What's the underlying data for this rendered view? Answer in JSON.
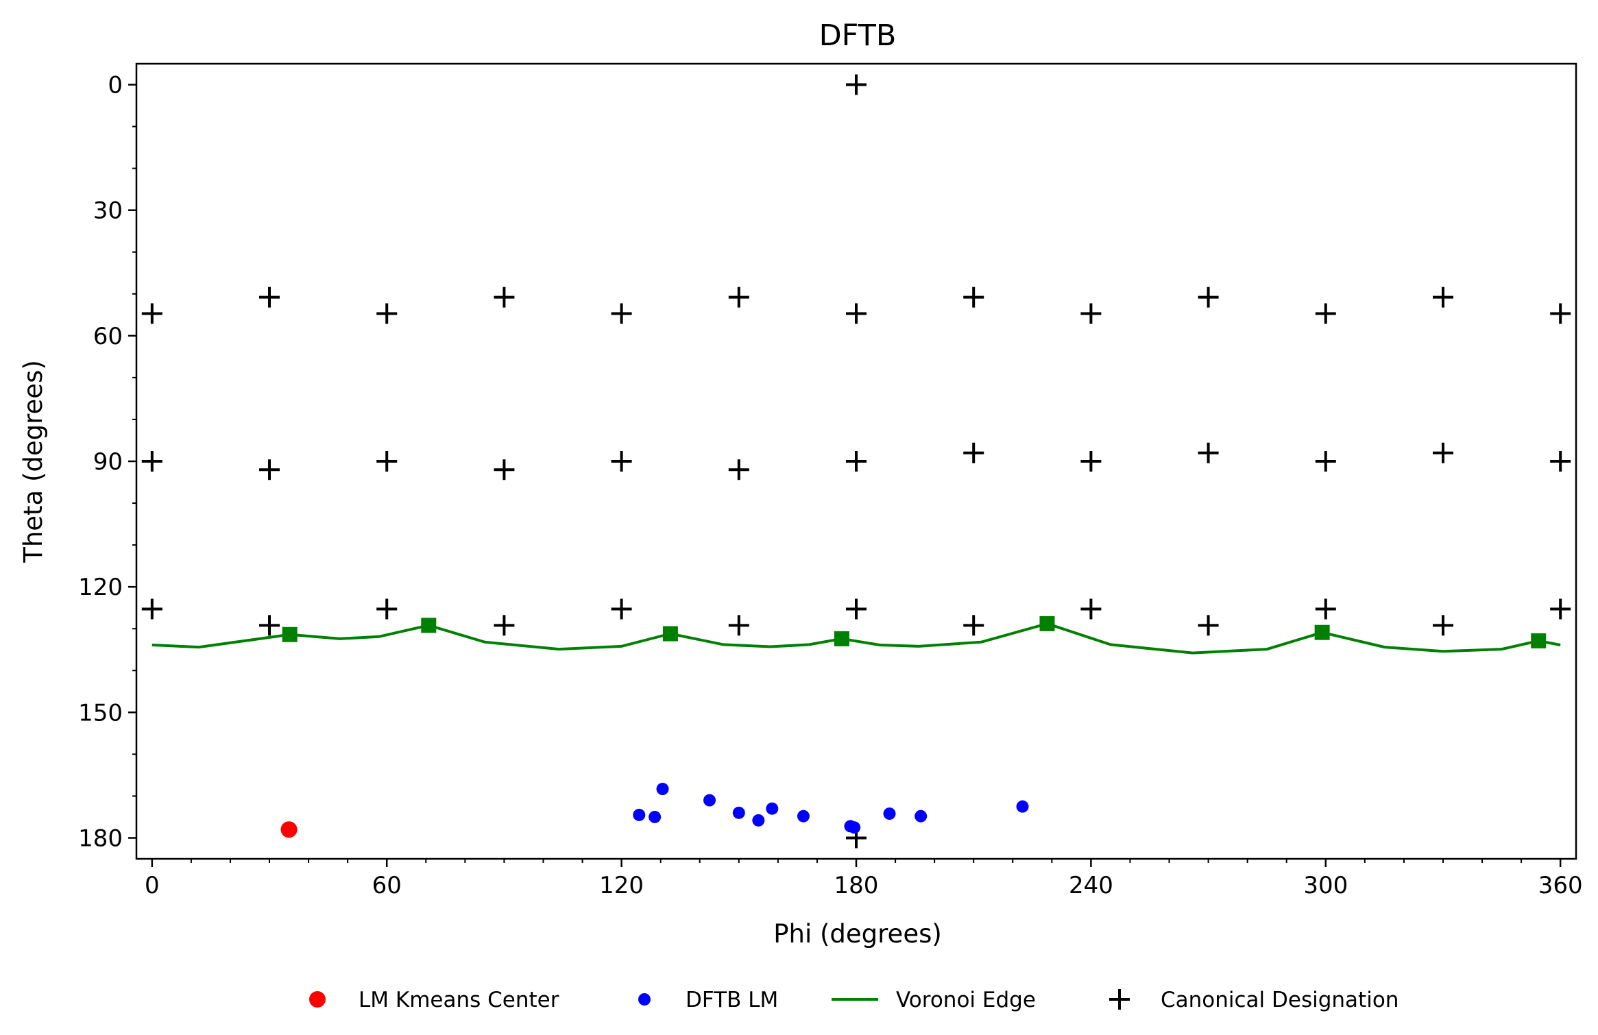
{
  "chart_data": {
    "type": "scatter",
    "title": "DFTB",
    "xlabel": "Phi (degrees)",
    "ylabel": "Theta (degrees)",
    "xlim": [
      -4,
      364
    ],
    "ylim": [
      185,
      -5
    ],
    "y_inverted": true,
    "xticks": [
      0,
      60,
      120,
      180,
      240,
      300,
      360
    ],
    "yticks": [
      0,
      30,
      60,
      90,
      120,
      150,
      180
    ],
    "grid": false,
    "legend_position": "bottom-center",
    "colors": {
      "kmeans": "#ff0000",
      "dftb": "#0000ff",
      "voronoi": "#008000",
      "canonical": "#000000"
    },
    "series": [
      {
        "name": "LM Kmeans Center",
        "marker": "circle",
        "points": [
          [
            35,
            178
          ]
        ]
      },
      {
        "name": "DFTB LM",
        "marker": "circle",
        "points": [
          [
            124.5,
            174.5
          ],
          [
            128.5,
            175
          ],
          [
            130.5,
            168.3
          ],
          [
            142.5,
            171
          ],
          [
            150,
            174
          ],
          [
            155,
            175.8
          ],
          [
            158.5,
            173
          ],
          [
            166.5,
            174.8
          ],
          [
            178.5,
            177.2
          ],
          [
            179.5,
            177.5
          ],
          [
            188.5,
            174.2
          ],
          [
            196.5,
            174.8
          ],
          [
            222.5,
            172.5
          ]
        ]
      },
      {
        "name": "Voronoi Edge",
        "marker": "line",
        "vertices": [
          [
            35.2,
            131.4
          ],
          [
            70.7,
            129.2
          ],
          [
            132.5,
            131.2
          ],
          [
            176.3,
            132.4
          ],
          [
            228.8,
            128.8
          ],
          [
            299.1,
            130.9
          ],
          [
            354.4,
            132.9
          ]
        ],
        "curve": [
          [
            0,
            133.9
          ],
          [
            12,
            134.4
          ],
          [
            35.2,
            131.4
          ],
          [
            48,
            132.4
          ],
          [
            58,
            131.9
          ],
          [
            70.7,
            129.2
          ],
          [
            85,
            133.2
          ],
          [
            104,
            134.9
          ],
          [
            120,
            134.2
          ],
          [
            132.5,
            131.2
          ],
          [
            146,
            133.8
          ],
          [
            158,
            134.3
          ],
          [
            168,
            133.8
          ],
          [
            176.3,
            132.4
          ],
          [
            186,
            133.9
          ],
          [
            196,
            134.2
          ],
          [
            212,
            133.2
          ],
          [
            228.8,
            128.8
          ],
          [
            245,
            133.8
          ],
          [
            266,
            135.8
          ],
          [
            285,
            134.9
          ],
          [
            299.1,
            130.9
          ],
          [
            315,
            134.4
          ],
          [
            330,
            135.4
          ],
          [
            345,
            134.9
          ],
          [
            354.4,
            132.9
          ],
          [
            360,
            133.9
          ]
        ]
      },
      {
        "name": "Canonical Designation",
        "marker": "plus",
        "points": [
          [
            180,
            0
          ],
          [
            0,
            54.7
          ],
          [
            30,
            50.8
          ],
          [
            60,
            54.7
          ],
          [
            90,
            50.8
          ],
          [
            120,
            54.7
          ],
          [
            150,
            50.8
          ],
          [
            180,
            54.7
          ],
          [
            210,
            50.8
          ],
          [
            240,
            54.7
          ],
          [
            270,
            50.8
          ],
          [
            300,
            54.7
          ],
          [
            330,
            50.8
          ],
          [
            360,
            54.7
          ],
          [
            0,
            90
          ],
          [
            30,
            92
          ],
          [
            60,
            90
          ],
          [
            90,
            92
          ],
          [
            120,
            90
          ],
          [
            150,
            92
          ],
          [
            180,
            90
          ],
          [
            210,
            88
          ],
          [
            240,
            90
          ],
          [
            270,
            88
          ],
          [
            300,
            90
          ],
          [
            330,
            88
          ],
          [
            360,
            90
          ],
          [
            0,
            125.3
          ],
          [
            30,
            129.2
          ],
          [
            60,
            125.3
          ],
          [
            90,
            129.2
          ],
          [
            120,
            125.3
          ],
          [
            150,
            129.2
          ],
          [
            180,
            125.3
          ],
          [
            210,
            129.2
          ],
          [
            240,
            125.3
          ],
          [
            270,
            129.2
          ],
          [
            300,
            125.3
          ],
          [
            330,
            129.2
          ],
          [
            360,
            125.3
          ],
          [
            180,
            180
          ]
        ]
      }
    ]
  }
}
